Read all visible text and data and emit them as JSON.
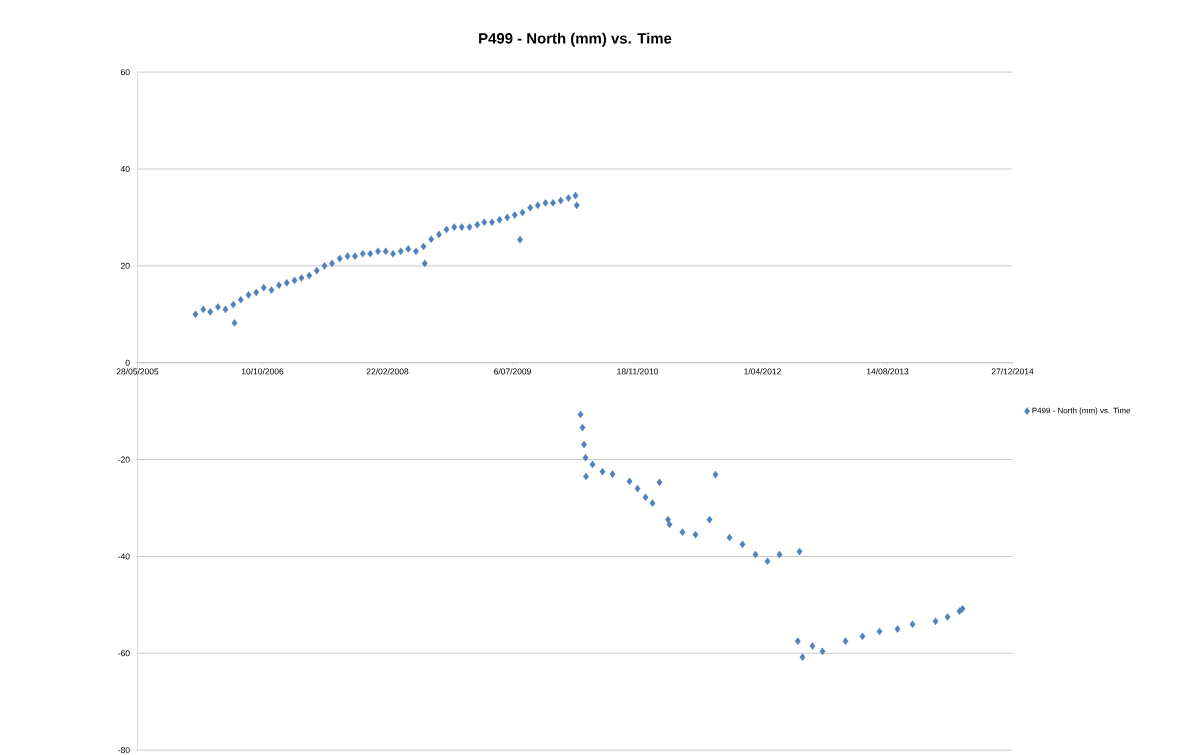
{
  "chart_data": {
    "type": "scatter",
    "title": "P499 - North (mm) vs. Time",
    "marker": "diamond",
    "grid": "y",
    "legend": "right",
    "xlim": [
      "2005-05-28",
      "2014-12-27"
    ],
    "xticks": [
      {
        "value": "2005-05-28",
        "label": "28/05/2005"
      },
      {
        "value": "2006-10-10",
        "label": "10/10/2006"
      },
      {
        "value": "2008-02-22",
        "label": "22/02/2008"
      },
      {
        "value": "2009-07-06",
        "label": "6/07/2009"
      },
      {
        "value": "2010-11-18",
        "label": "18/11/2010"
      },
      {
        "value": "2012-04-01",
        "label": "1/04/2012"
      },
      {
        "value": "2013-08-14",
        "label": "14/08/2013"
      },
      {
        "value": "2014-12-27",
        "label": "27/12/2014"
      }
    ],
    "ylim": [
      -80,
      60
    ],
    "yticks": [
      -80,
      -60,
      -40,
      -20,
      0,
      20,
      40,
      60
    ],
    "series": [
      {
        "name": "P499 - North (mm) vs. Time",
        "color": "#4f81bd",
        "x": [
          "2006-01-15",
          "2006-02-15",
          "2006-03-15",
          "2006-04-15",
          "2006-05-15",
          "2006-06-15",
          "2006-06-20",
          "2006-07-15",
          "2006-08-15",
          "2006-09-15",
          "2006-10-15",
          "2006-11-15",
          "2006-12-15",
          "2007-01-15",
          "2007-02-15",
          "2007-03-15",
          "2007-04-15",
          "2007-05-15",
          "2007-06-15",
          "2007-07-15",
          "2007-08-15",
          "2007-09-15",
          "2007-10-15",
          "2007-11-15",
          "2007-12-15",
          "2008-01-15",
          "2008-02-15",
          "2008-03-15",
          "2008-04-15",
          "2008-05-15",
          "2008-06-15",
          "2008-07-15",
          "2008-07-20",
          "2008-08-15",
          "2008-09-15",
          "2008-10-15",
          "2008-11-15",
          "2008-12-15",
          "2009-01-15",
          "2009-02-15",
          "2009-03-15",
          "2009-04-15",
          "2009-05-15",
          "2009-06-15",
          "2009-07-15",
          "2009-08-05",
          "2009-08-15",
          "2009-09-15",
          "2009-10-15",
          "2009-11-15",
          "2009-12-15",
          "2010-01-15",
          "2010-02-15",
          "2010-03-15",
          "2010-03-20",
          "2010-04-04",
          "2010-04-12",
          "2010-04-18",
          "2010-04-24",
          "2010-04-26",
          "2010-05-22",
          "2010-07-01",
          "2010-08-10",
          "2010-10-17",
          "2010-11-18",
          "2010-12-20",
          "2011-01-17",
          "2011-02-14",
          "2011-03-20",
          "2011-03-26",
          "2011-05-17",
          "2011-07-08",
          "2011-09-02",
          "2011-09-26",
          "2011-11-21",
          "2012-01-12",
          "2012-03-04",
          "2012-04-21",
          "2012-06-08",
          "2012-08-27",
          "2012-08-20",
          "2012-09-08",
          "2012-10-18",
          "2012-11-27",
          "2013-02-27",
          "2013-05-06",
          "2013-07-13",
          "2013-09-23",
          "2013-11-22",
          "2014-02-22",
          "2014-04-11",
          "2014-05-29",
          "2014-06-10"
        ],
        "values": [
          10,
          11,
          10.5,
          11.5,
          11,
          12,
          8.2,
          13,
          14,
          14.5,
          15.5,
          15,
          16,
          16.5,
          17,
          17.5,
          18,
          19,
          20,
          20.5,
          21.5,
          22,
          22,
          22.5,
          22.5,
          23,
          23,
          22.5,
          23,
          23.5,
          23,
          24,
          20.5,
          25.5,
          26.5,
          27.5,
          28,
          28,
          28,
          28.5,
          29,
          29,
          29.5,
          30,
          30.5,
          25.4,
          31,
          32,
          32.5,
          33,
          33,
          33.5,
          34,
          34.5,
          32.5,
          -10.7,
          -13.4,
          -16.9,
          -19.6,
          -23.5,
          -21,
          -22.5,
          -23,
          -24.5,
          -26,
          -27.8,
          -29,
          -24.7,
          -32.4,
          -33.4,
          -35,
          -35.5,
          -32.4,
          -23.1,
          -36.1,
          -37.5,
          -39.6,
          -41,
          -39.6,
          -39,
          -57.5,
          -60.8,
          -58.5,
          -59.6,
          -57.5,
          -56.5,
          -55.5,
          -55,
          -54,
          -53.4,
          -52.5,
          -51.3,
          -50.8
        ]
      }
    ]
  }
}
